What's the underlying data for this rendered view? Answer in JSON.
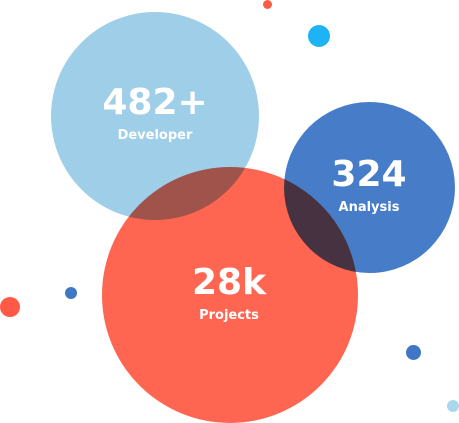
{
  "stats": [
    {
      "value": "482+",
      "label": "Developer",
      "color": "#9fcfe8"
    },
    {
      "value": "324",
      "label": "Analysis",
      "color": "#3f77c6"
    },
    {
      "value": "28k",
      "label": "Projects",
      "color": "#ff5a45"
    }
  ],
  "colors": {
    "light_blue": "#9fcfe8",
    "dark_blue": "#3f77c6",
    "coral": "#ff5a45",
    "cyan": "#1eb3f5",
    "pale_blue": "#a9d8ee"
  }
}
